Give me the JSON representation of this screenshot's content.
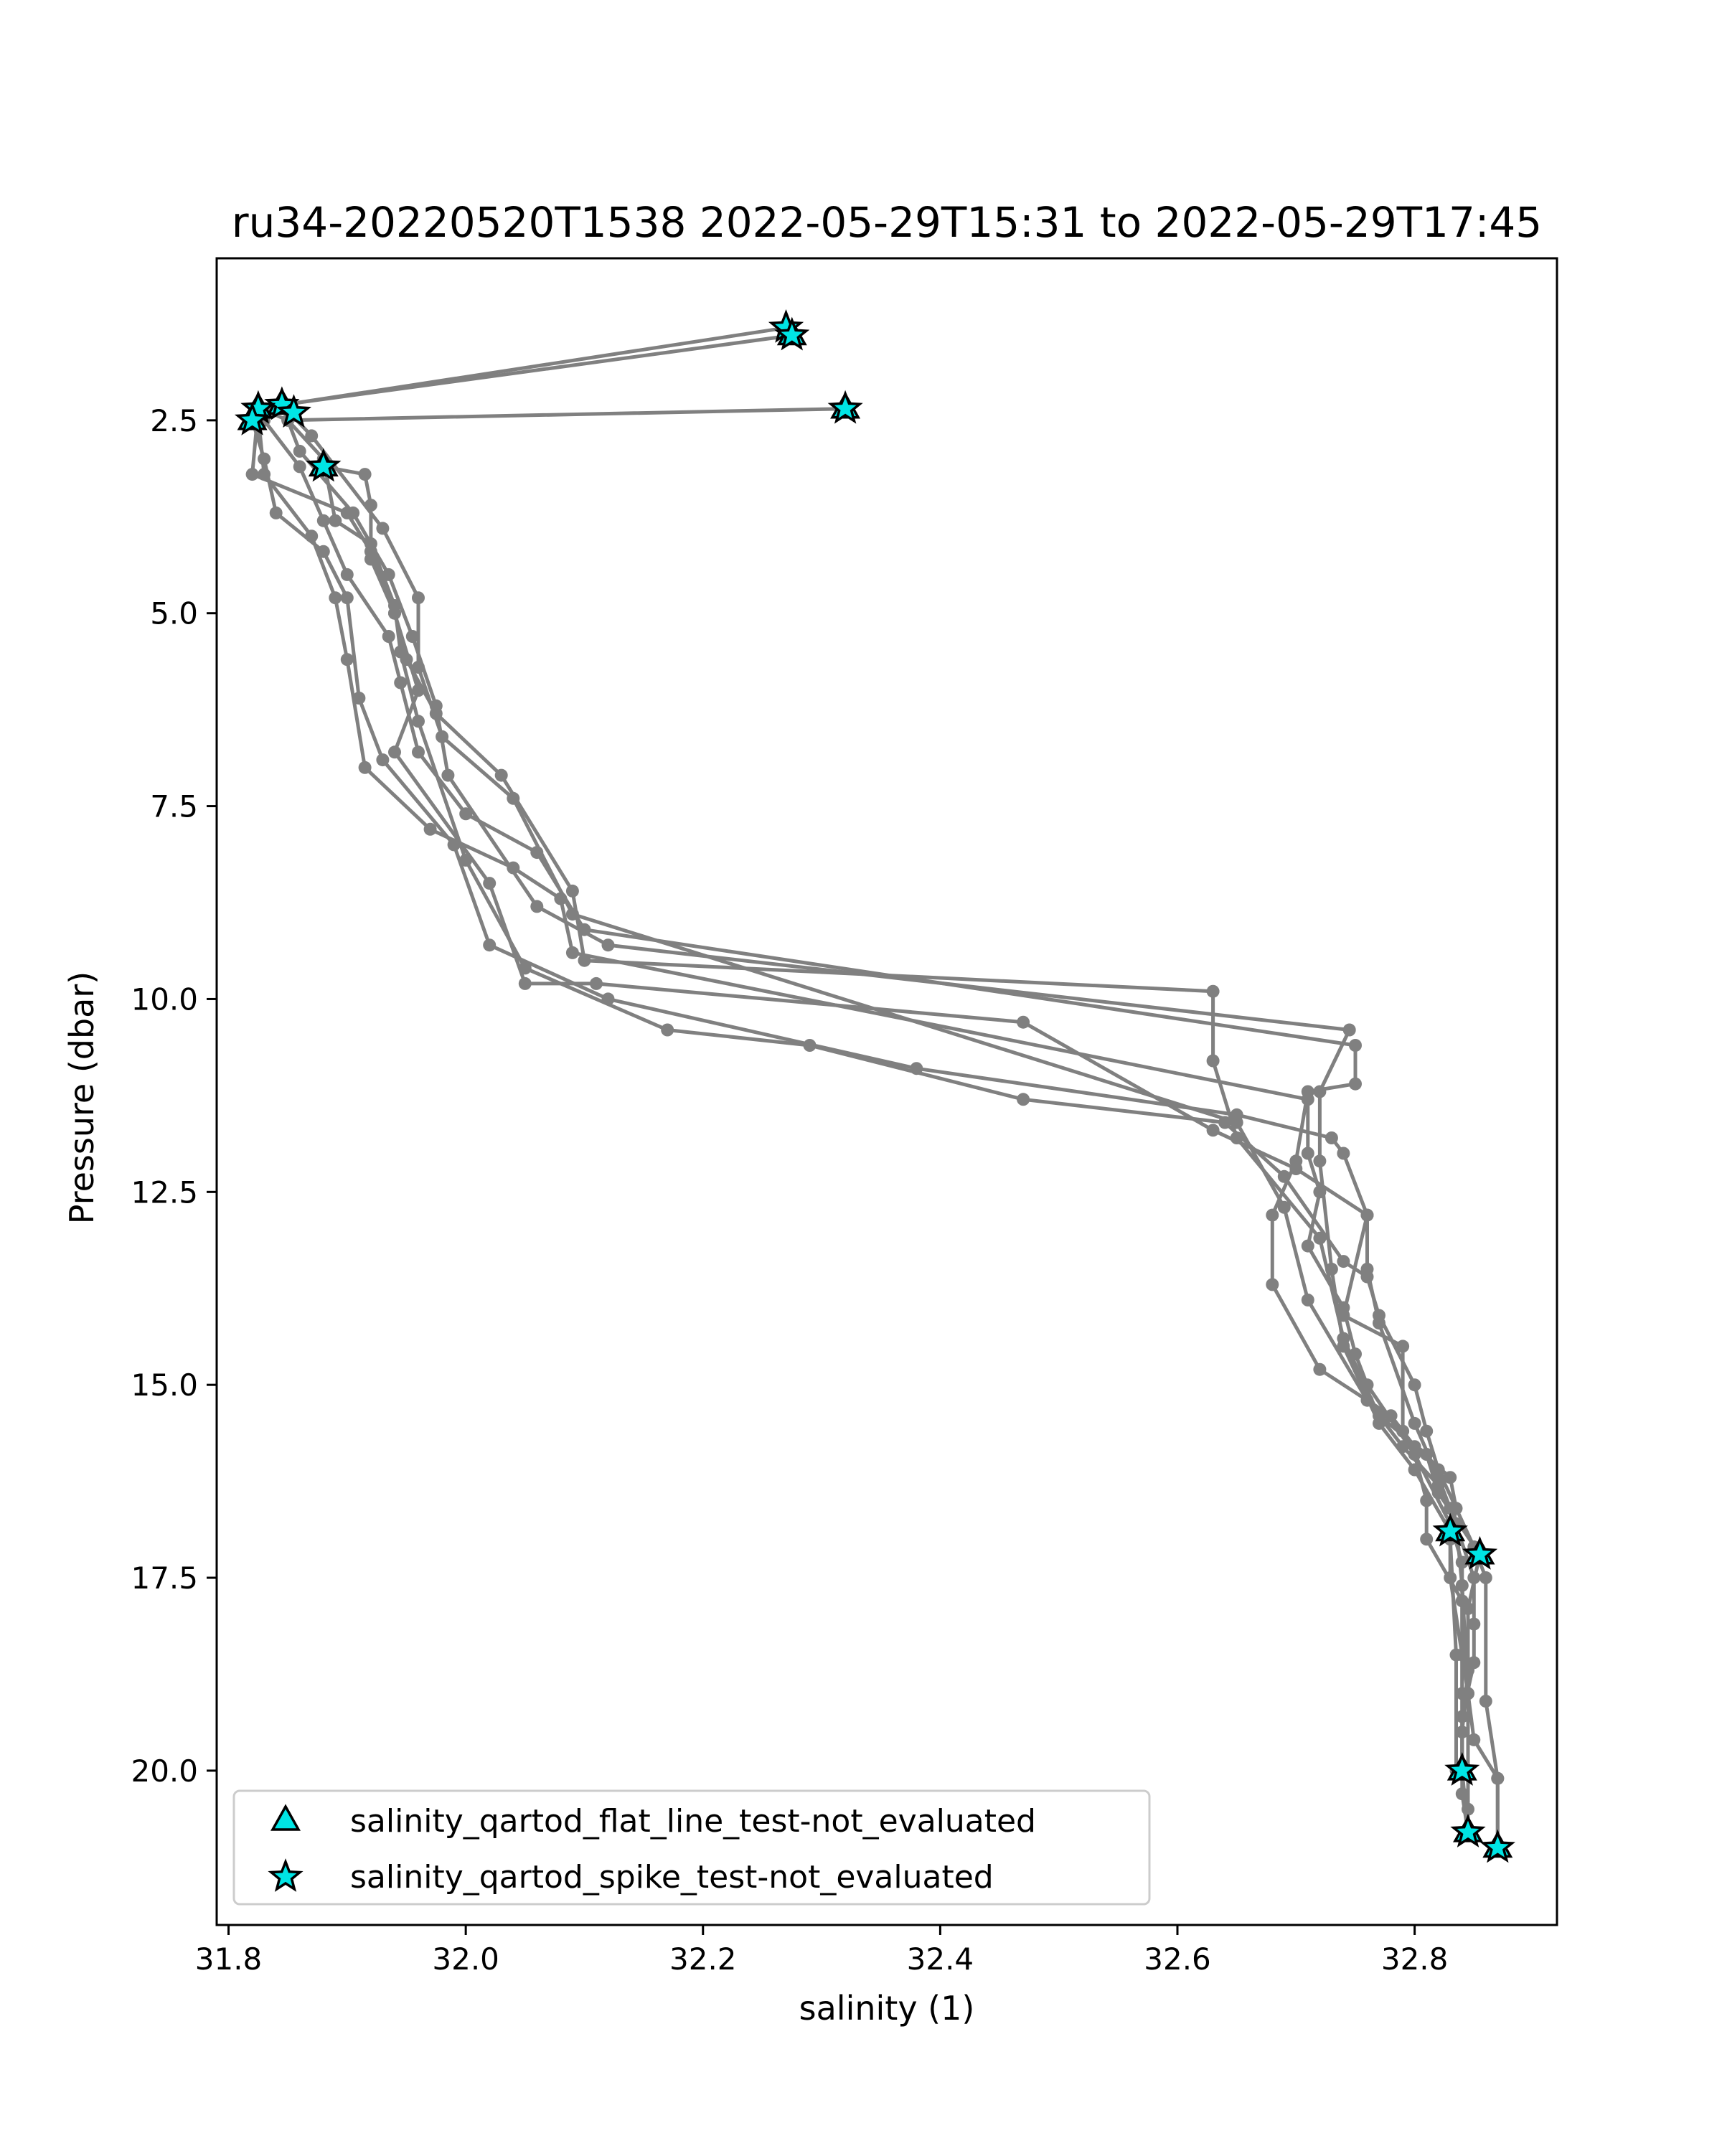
{
  "chart_data": {
    "type": "scatter",
    "title": "ru34-20220520T1538 2022-05-29T15:31 to 2022-05-29T17:45",
    "xlabel": "salinity (1)",
    "ylabel": "Pressure (dbar)",
    "xlim": [
      31.79,
      32.92
    ],
    "ylim": [
      22.0,
      0.4
    ],
    "y_inverted": true,
    "grid": false,
    "xticks": [
      31.8,
      32.0,
      32.2,
      32.4,
      32.6,
      32.8
    ],
    "xtick_labels": [
      "31.8",
      "32.0",
      "32.2",
      "32.4",
      "32.6",
      "32.8"
    ],
    "yticks": [
      2.5,
      5.0,
      7.5,
      10.0,
      12.5,
      15.0,
      17.5,
      20.0
    ],
    "ytick_labels": [
      "2.5",
      "5.0",
      "7.5",
      "10.0",
      "12.5",
      "15.0",
      "17.5",
      "20.0"
    ],
    "line_color": "#808080",
    "marker_fill": "#00e5e5",
    "marker_edge": "#000000",
    "legend_position": "lower left",
    "legend": [
      {
        "label": "salinity_qartod_flat_line_test-not_evaluated",
        "marker": "triangle"
      },
      {
        "label": "salinity_qartod_spike_test-not_evaluated",
        "marker": "star"
      }
    ],
    "series": [
      {
        "points": [
          [
            32.275,
            1.4
          ],
          [
            31.845,
            2.3
          ],
          [
            31.87,
            2.7
          ],
          [
            31.93,
            3.9
          ],
          [
            31.96,
            4.8
          ],
          [
            31.96,
            5.7
          ],
          [
            31.98,
            6.6
          ],
          [
            32.04,
            7.4
          ],
          [
            32.09,
            8.9
          ],
          [
            32.65,
            11.6
          ],
          [
            32.69,
            12.7
          ],
          [
            32.71,
            13.9
          ],
          [
            32.76,
            15.2
          ],
          [
            32.79,
            15.8
          ],
          [
            32.82,
            16.3
          ],
          [
            32.835,
            16.8
          ],
          [
            32.84,
            17.6
          ],
          [
            32.845,
            19.0
          ],
          [
            32.85,
            19.6
          ],
          [
            32.87,
            20.1
          ],
          [
            32.87,
            21.0
          ]
        ]
      },
      {
        "points": [
          [
            32.27,
            1.3
          ],
          [
            31.825,
            2.35
          ],
          [
            31.82,
            3.2
          ],
          [
            31.9,
            3.7
          ],
          [
            31.92,
            4.2
          ],
          [
            31.94,
            5.0
          ],
          [
            31.95,
            5.6
          ],
          [
            31.975,
            6.3
          ],
          [
            32.03,
            7.1
          ],
          [
            32.09,
            8.6
          ],
          [
            32.1,
            9.5
          ],
          [
            32.63,
            9.9
          ],
          [
            32.63,
            10.8
          ],
          [
            32.65,
            11.8
          ],
          [
            32.72,
            13.1
          ],
          [
            32.74,
            14.4
          ],
          [
            32.77,
            15.4
          ],
          [
            32.81,
            15.9
          ],
          [
            32.82,
            16.4
          ],
          [
            32.855,
            17.2
          ],
          [
            32.845,
            17.9
          ],
          [
            32.845,
            18.7
          ],
          [
            32.84,
            19.5
          ],
          [
            32.84,
            20.0
          ]
        ]
      },
      {
        "points": [
          [
            32.32,
            2.35
          ],
          [
            31.85,
            2.5
          ],
          [
            31.86,
            2.9
          ],
          [
            31.905,
            3.7
          ],
          [
            31.935,
            4.5
          ],
          [
            31.955,
            5.3
          ],
          [
            31.975,
            6.2
          ],
          [
            31.985,
            7.1
          ],
          [
            32.06,
            8.8
          ],
          [
            32.12,
            9.3
          ],
          [
            32.745,
            10.4
          ],
          [
            32.72,
            11.2
          ],
          [
            32.72,
            12.1
          ],
          [
            32.73,
            13.5
          ],
          [
            32.74,
            14.5
          ],
          [
            32.77,
            15.5
          ],
          [
            32.8,
            16.1
          ],
          [
            32.83,
            16.9
          ],
          [
            32.83,
            17.5
          ],
          [
            32.84,
            18.5
          ],
          [
            32.845,
            19.0
          ],
          [
            32.845,
            20.5
          ],
          [
            32.845,
            20.8
          ]
        ]
      },
      {
        "points": [
          [
            31.88,
            3.1
          ],
          [
            31.915,
            3.2
          ],
          [
            31.92,
            3.6
          ],
          [
            31.92,
            4.3
          ],
          [
            31.94,
            5.0
          ],
          [
            31.96,
            6.0
          ],
          [
            31.94,
            6.8
          ],
          [
            32.02,
            8.5
          ],
          [
            32.05,
            9.8
          ],
          [
            32.11,
            9.8
          ],
          [
            32.47,
            10.3
          ],
          [
            32.63,
            11.7
          ],
          [
            32.7,
            12.2
          ],
          [
            32.76,
            12.8
          ],
          [
            32.76,
            13.5
          ],
          [
            32.77,
            14.2
          ],
          [
            32.8,
            15.5
          ],
          [
            32.82,
            16.2
          ],
          [
            32.83,
            16.6
          ],
          [
            32.85,
            17.5
          ],
          [
            32.85,
            18.1
          ],
          [
            32.85,
            18.6
          ],
          [
            32.84,
            19.3
          ],
          [
            32.84,
            20.3
          ],
          [
            32.845,
            20.8
          ]
        ]
      },
      {
        "points": [
          [
            31.82,
            2.5
          ],
          [
            31.83,
            3.0
          ],
          [
            31.84,
            3.7
          ],
          [
            31.88,
            4.2
          ],
          [
            31.9,
            4.8
          ],
          [
            31.91,
            6.1
          ],
          [
            31.93,
            6.9
          ],
          [
            31.99,
            8.0
          ],
          [
            32.02,
            9.3
          ],
          [
            32.12,
            10.0
          ],
          [
            32.38,
            10.9
          ],
          [
            32.65,
            11.5
          ],
          [
            32.73,
            11.8
          ],
          [
            32.74,
            12.0
          ],
          [
            32.76,
            12.8
          ],
          [
            32.74,
            14.1
          ],
          [
            32.79,
            14.5
          ],
          [
            32.79,
            15.6
          ],
          [
            32.83,
            16.8
          ],
          [
            32.84,
            17.3
          ],
          [
            32.84,
            19.0
          ],
          [
            32.84,
            20.0
          ]
        ]
      },
      {
        "points": [
          [
            31.835,
            2.4
          ],
          [
            31.85,
            2.5
          ],
          [
            31.88,
            3.0
          ],
          [
            31.89,
            3.8
          ],
          [
            31.92,
            4.1
          ],
          [
            31.94,
            4.9
          ],
          [
            31.945,
            5.5
          ],
          [
            31.96,
            6.4
          ],
          [
            32.0,
            8.2
          ],
          [
            32.05,
            9.6
          ],
          [
            32.17,
            10.4
          ],
          [
            32.29,
            10.6
          ],
          [
            32.47,
            11.3
          ],
          [
            32.64,
            11.6
          ],
          [
            32.69,
            12.3
          ],
          [
            32.74,
            13.4
          ],
          [
            32.76,
            13.6
          ],
          [
            32.77,
            14.1
          ],
          [
            32.8,
            15.0
          ],
          [
            32.81,
            15.6
          ],
          [
            32.82,
            16.1
          ],
          [
            32.85,
            17.1
          ],
          [
            32.86,
            17.5
          ],
          [
            32.86,
            19.1
          ],
          [
            32.87,
            20.1
          ],
          [
            32.87,
            21.0
          ]
        ]
      },
      {
        "points": [
          [
            31.83,
            2.5
          ],
          [
            31.86,
            3.1
          ],
          [
            31.88,
            3.8
          ],
          [
            31.9,
            4.5
          ],
          [
            31.935,
            5.3
          ],
          [
            31.945,
            5.9
          ],
          [
            31.96,
            6.8
          ],
          [
            32.0,
            7.6
          ],
          [
            32.06,
            8.1
          ],
          [
            32.1,
            9.1
          ],
          [
            32.75,
            10.6
          ],
          [
            32.75,
            11.1
          ],
          [
            32.71,
            11.2
          ],
          [
            32.7,
            12.1
          ],
          [
            32.68,
            12.8
          ],
          [
            32.68,
            13.7
          ],
          [
            32.72,
            14.8
          ],
          [
            32.78,
            15.4
          ],
          [
            32.8,
            15.8
          ],
          [
            32.83,
            16.2
          ],
          [
            32.835,
            16.6
          ],
          [
            32.83,
            17.0
          ],
          [
            32.835,
            18.5
          ],
          [
            32.835,
            20.0
          ]
        ]
      },
      {
        "points": [
          [
            31.825,
            2.45
          ],
          [
            31.83,
            3.2
          ],
          [
            31.87,
            4.0
          ],
          [
            31.89,
            4.8
          ],
          [
            31.9,
            5.6
          ],
          [
            31.915,
            7.0
          ],
          [
            31.97,
            7.8
          ],
          [
            32.04,
            8.3
          ],
          [
            32.08,
            8.7
          ],
          [
            32.09,
            9.4
          ],
          [
            32.71,
            11.3
          ],
          [
            32.71,
            12.0
          ],
          [
            32.72,
            12.5
          ],
          [
            32.71,
            13.2
          ],
          [
            32.74,
            14.0
          ],
          [
            32.75,
            14.6
          ],
          [
            32.76,
            15.0
          ],
          [
            32.8,
            15.9
          ],
          [
            32.81,
            16.5
          ],
          [
            32.81,
            17.0
          ],
          [
            32.84,
            17.8
          ],
          [
            32.84,
            20.0
          ],
          [
            32.845,
            20.8
          ]
        ]
      }
    ],
    "spike_markers": [
      [
        32.27,
        1.3
      ],
      [
        32.275,
        1.4
      ],
      [
        32.32,
        2.35
      ],
      [
        31.845,
        2.3
      ],
      [
        31.825,
        2.35
      ],
      [
        31.855,
        2.4
      ],
      [
        31.82,
        2.5
      ],
      [
        31.88,
        3.1
      ],
      [
        32.83,
        16.9
      ],
      [
        32.855,
        17.2
      ],
      [
        32.84,
        20.0
      ],
      [
        32.845,
        20.8
      ],
      [
        32.87,
        21.0
      ]
    ],
    "flatline_markers": [
      [
        32.275,
        1.4
      ],
      [
        32.32,
        2.35
      ],
      [
        31.845,
        2.3
      ],
      [
        31.825,
        2.35
      ],
      [
        31.82,
        2.5
      ],
      [
        31.88,
        3.1
      ],
      [
        32.83,
        16.9
      ],
      [
        32.855,
        17.2
      ],
      [
        32.84,
        20.0
      ],
      [
        32.845,
        20.8
      ],
      [
        32.87,
        21.0
      ]
    ]
  }
}
